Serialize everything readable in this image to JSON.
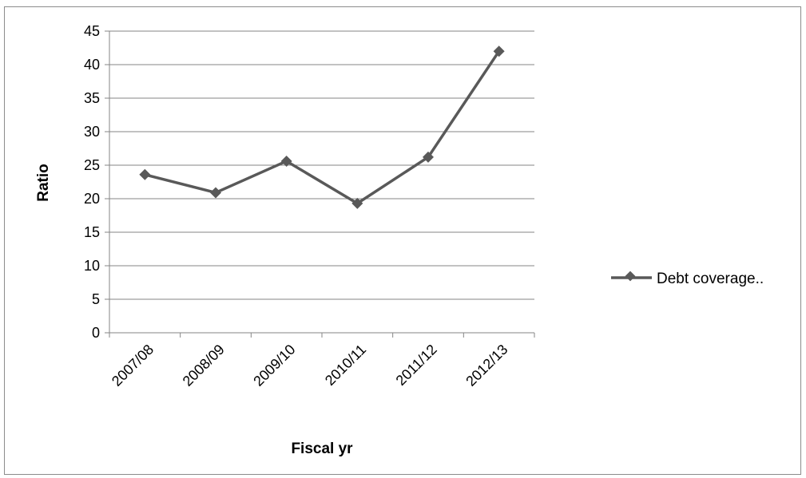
{
  "chart_data": {
    "type": "line",
    "title": "",
    "xlabel": "Fiscal yr",
    "ylabel": "Ratio",
    "categories": [
      "2007/08",
      "2008/09",
      "2009/10",
      "2010/11",
      "2011/12",
      "2012/13"
    ],
    "series": [
      {
        "name": "Debt coverage..",
        "values": [
          23.6,
          20.9,
          25.6,
          19.3,
          26.2,
          42.0
        ],
        "color": "#595959",
        "marker": "diamond"
      }
    ],
    "ylim": [
      0,
      45
    ],
    "yticks": [
      0,
      5,
      10,
      15,
      20,
      25,
      30,
      35,
      40,
      45
    ],
    "grid": true,
    "legend_position": "right"
  }
}
